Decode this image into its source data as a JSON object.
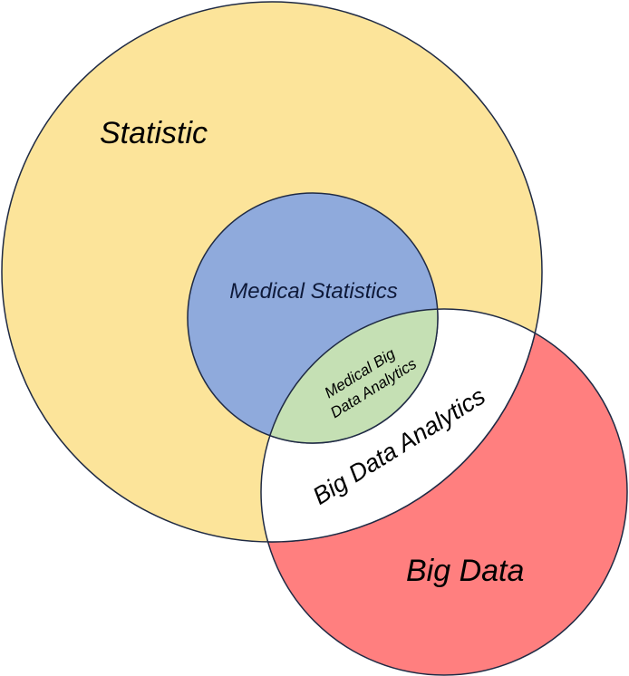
{
  "diagram": {
    "sets": {
      "statistic": {
        "label": "Statistic",
        "color": "#fce49a"
      },
      "medical_statistics": {
        "label": "Medical Statistics",
        "color": "#8faadc"
      },
      "big_data": {
        "label": "Big Data",
        "color": "#ff7f7f"
      },
      "big_data_analytics": {
        "label": "Big Data Analytics",
        "color": "#ffffff"
      },
      "medical_big_data_analytics": {
        "label_line1": "Medical Big",
        "label_line2": "Data Analytics",
        "color": "#c5e0b4"
      }
    },
    "outline_color": "#1f2a44"
  }
}
